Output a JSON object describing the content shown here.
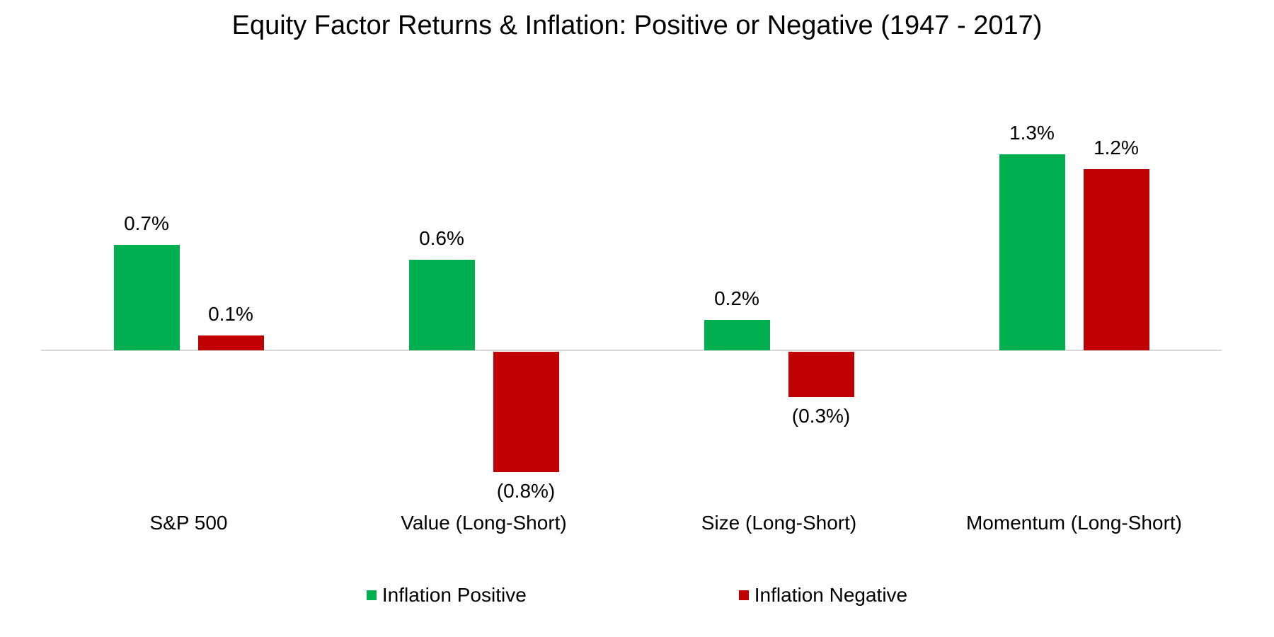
{
  "chart_data": {
    "type": "bar",
    "title": "Equity Factor Returns & Inflation: Positive or Negative (1947 - 2017)",
    "categories": [
      "S&P 500",
      "Value (Long-Short)",
      "Size (Long-Short)",
      "Momentum (Long-Short)"
    ],
    "series": [
      {
        "name": "Inflation Positive",
        "color": "#00B050",
        "values": [
          0.7,
          0.6,
          0.2,
          1.3
        ],
        "labels": [
          "0.7%",
          "0.6%",
          "0.2%",
          "1.3%"
        ]
      },
      {
        "name": "Inflation Negative",
        "color": "#C00000",
        "values": [
          0.1,
          -0.8,
          -0.3,
          1.2
        ],
        "labels": [
          "0.1%",
          "(0.8%)",
          "(0.3%)",
          "1.2%"
        ]
      }
    ],
    "value_unit": "%",
    "ylim": [
      -1.0,
      1.5
    ],
    "grid": false,
    "y_axis_visible": false,
    "x_axis_line_color": "#D9D9D9",
    "negative_label_style": "parentheses",
    "legend_position": "bottom-center",
    "background_color": "#FFFFFF",
    "text_color": "#000000"
  }
}
